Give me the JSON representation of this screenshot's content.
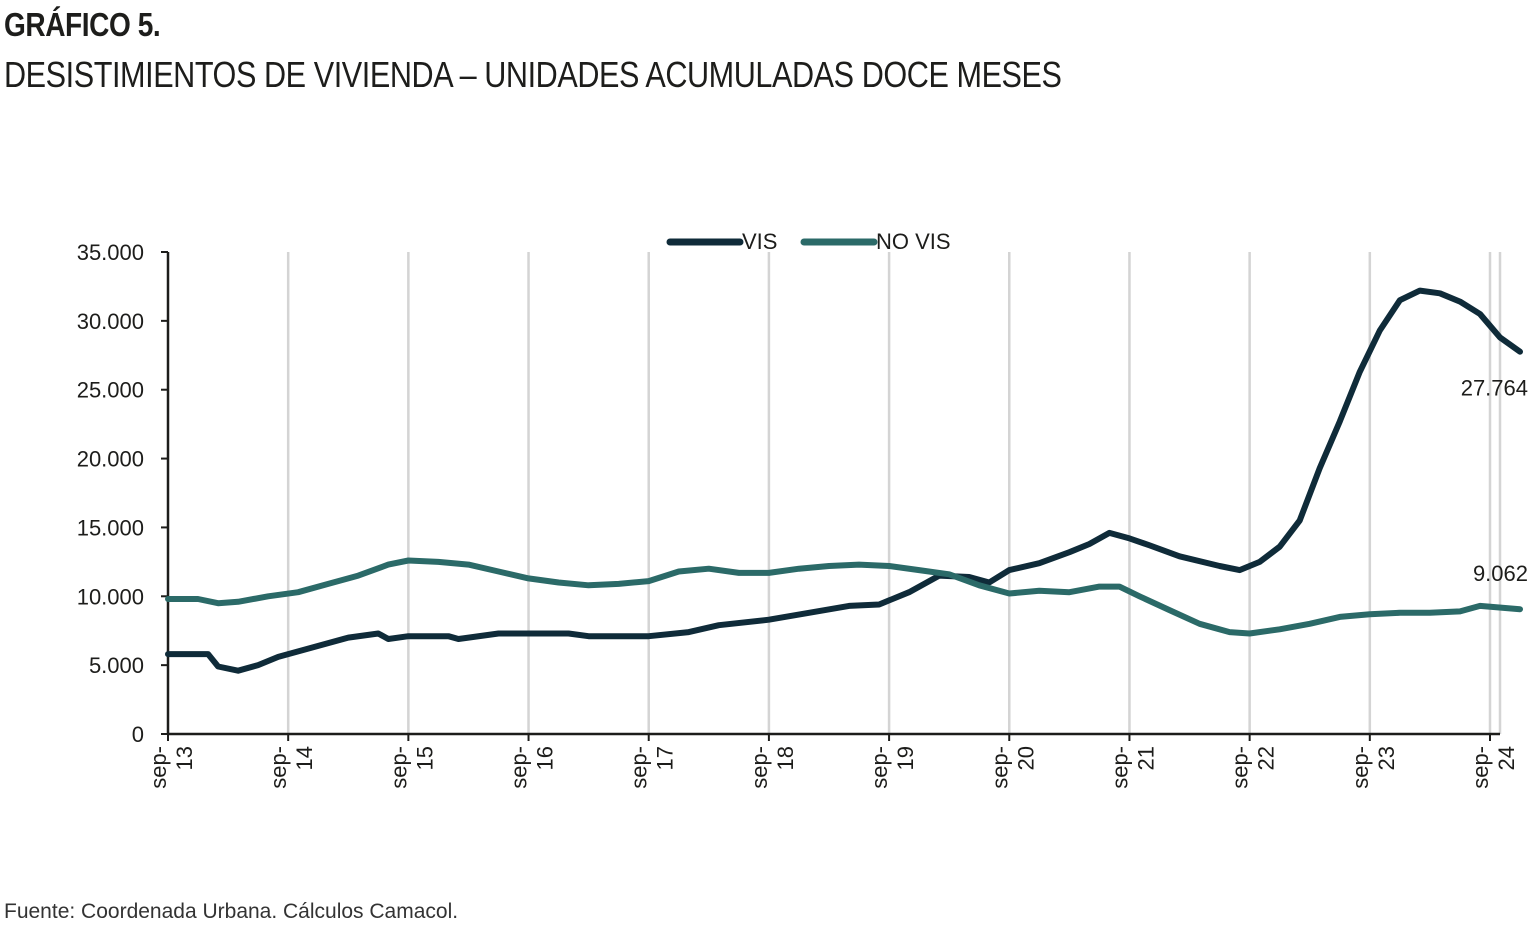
{
  "figure": {
    "label": "GRÁFICO 5.",
    "title": "DESISTIMIENTOS DE VIVIENDA – UNIDADES ACUMULADAS DOCE MESES",
    "source": "Fuente: Coordenada Urbana. Cálculos Camacol."
  },
  "chart_data": {
    "type": "line",
    "title": "DESISTIMIENTOS DE VIVIENDA – UNIDADES ACUMULADAS DOCE MESES",
    "xlabel": "",
    "ylabel": "",
    "ylim": [
      0,
      35000
    ],
    "y_ticks": [
      0,
      5000,
      10000,
      15000,
      20000,
      25000,
      30000,
      35000
    ],
    "y_tick_labels": [
      "0",
      "5.000",
      "10.000",
      "15.000",
      "20.000",
      "25.000",
      "30.000",
      "35.000"
    ],
    "x_ticks": [
      {
        "date": "2013-09",
        "line1": "sep-",
        "line2": "13"
      },
      {
        "date": "2014-09",
        "line1": "sep-",
        "line2": "14"
      },
      {
        "date": "2015-09",
        "line1": "sep-",
        "line2": "15"
      },
      {
        "date": "2016-09",
        "line1": "sep-",
        "line2": "16"
      },
      {
        "date": "2017-09",
        "line1": "sep-",
        "line2": "17"
      },
      {
        "date": "2018-09",
        "line1": "sep-",
        "line2": "18"
      },
      {
        "date": "2019-09",
        "line1": "sep-",
        "line2": "19"
      },
      {
        "date": "2020-09",
        "line1": "sep-",
        "line2": "20"
      },
      {
        "date": "2021-09",
        "line1": "sep-",
        "line2": "21"
      },
      {
        "date": "2022-09",
        "line1": "sep-",
        "line2": "22"
      },
      {
        "date": "2023-09",
        "line1": "sep-",
        "line2": "23"
      },
      {
        "date": "2024-09",
        "line1": "sep-",
        "line2": "24"
      }
    ],
    "grid": "vertical",
    "legend_position": "top-center",
    "series": [
      {
        "name": "VIS",
        "color": "#0f2b39",
        "end_label": "27.764",
        "points": [
          [
            "2013-09",
            5800
          ],
          [
            "2014-01",
            5800
          ],
          [
            "2014-02",
            4900
          ],
          [
            "2014-04",
            4600
          ],
          [
            "2014-06",
            5000
          ],
          [
            "2014-08",
            5600
          ],
          [
            "2014-10",
            6000
          ],
          [
            "2014-12",
            6400
          ],
          [
            "2015-03",
            7000
          ],
          [
            "2015-06",
            7300
          ],
          [
            "2015-07",
            6900
          ],
          [
            "2015-09",
            7100
          ],
          [
            "2016-01",
            7100
          ],
          [
            "2016-02",
            6900
          ],
          [
            "2016-06",
            7300
          ],
          [
            "2017-01",
            7300
          ],
          [
            "2017-03",
            7100
          ],
          [
            "2017-09",
            7100
          ],
          [
            "2018-01",
            7400
          ],
          [
            "2018-04",
            7900
          ],
          [
            "2018-09",
            8300
          ],
          [
            "2019-01",
            8800
          ],
          [
            "2019-05",
            9300
          ],
          [
            "2019-08",
            9400
          ],
          [
            "2019-11",
            10300
          ],
          [
            "2020-02",
            11500
          ],
          [
            "2020-05",
            11400
          ],
          [
            "2020-07",
            11000
          ],
          [
            "2020-09",
            11900
          ],
          [
            "2020-12",
            12400
          ],
          [
            "2021-03",
            13200
          ],
          [
            "2021-05",
            13800
          ],
          [
            "2021-07",
            14600
          ],
          [
            "2021-09",
            14200
          ],
          [
            "2021-11",
            13700
          ],
          [
            "2022-02",
            12900
          ],
          [
            "2022-06",
            12200
          ],
          [
            "2022-08",
            11900
          ],
          [
            "2022-10",
            12500
          ],
          [
            "2022-12",
            13600
          ],
          [
            "2023-02",
            15500
          ],
          [
            "2023-04",
            19300
          ],
          [
            "2023-06",
            22700
          ],
          [
            "2023-08",
            26300
          ],
          [
            "2023-10",
            29300
          ],
          [
            "2023-12",
            31500
          ],
          [
            "2024-02",
            32200
          ],
          [
            "2024-04",
            32000
          ],
          [
            "2024-06",
            31400
          ],
          [
            "2024-08",
            30500
          ],
          [
            "2024-10",
            28800
          ],
          [
            "2024-12",
            27764
          ]
        ]
      },
      {
        "name": "NO VIS",
        "color": "#2b6a68",
        "end_label": "9.062",
        "points": [
          [
            "2013-09",
            9800
          ],
          [
            "2013-12",
            9800
          ],
          [
            "2014-02",
            9500
          ],
          [
            "2014-04",
            9600
          ],
          [
            "2014-07",
            10000
          ],
          [
            "2014-10",
            10300
          ],
          [
            "2015-01",
            10900
          ],
          [
            "2015-04",
            11500
          ],
          [
            "2015-07",
            12300
          ],
          [
            "2015-09",
            12600
          ],
          [
            "2015-12",
            12500
          ],
          [
            "2016-03",
            12300
          ],
          [
            "2016-06",
            11800
          ],
          [
            "2016-09",
            11300
          ],
          [
            "2016-12",
            11000
          ],
          [
            "2017-03",
            10800
          ],
          [
            "2017-06",
            10900
          ],
          [
            "2017-09",
            11100
          ],
          [
            "2017-12",
            11800
          ],
          [
            "2018-03",
            12000
          ],
          [
            "2018-06",
            11700
          ],
          [
            "2018-09",
            11700
          ],
          [
            "2018-12",
            12000
          ],
          [
            "2019-03",
            12200
          ],
          [
            "2019-06",
            12300
          ],
          [
            "2019-09",
            12200
          ],
          [
            "2019-12",
            11900
          ],
          [
            "2020-03",
            11600
          ],
          [
            "2020-06",
            10800
          ],
          [
            "2020-09",
            10200
          ],
          [
            "2020-12",
            10400
          ],
          [
            "2021-03",
            10300
          ],
          [
            "2021-06",
            10700
          ],
          [
            "2021-08",
            10700
          ],
          [
            "2021-10",
            10000
          ],
          [
            "2022-01",
            9000
          ],
          [
            "2022-04",
            8000
          ],
          [
            "2022-07",
            7400
          ],
          [
            "2022-09",
            7300
          ],
          [
            "2022-12",
            7600
          ],
          [
            "2023-03",
            8000
          ],
          [
            "2023-06",
            8500
          ],
          [
            "2023-09",
            8700
          ],
          [
            "2023-12",
            8800
          ],
          [
            "2024-03",
            8800
          ],
          [
            "2024-06",
            8900
          ],
          [
            "2024-08",
            9300
          ],
          [
            "2024-12",
            9062
          ]
        ]
      }
    ]
  }
}
